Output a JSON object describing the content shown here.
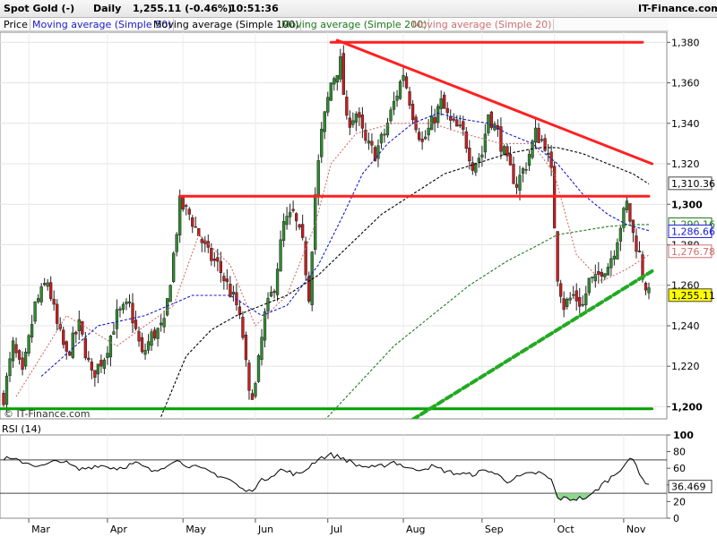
{
  "header": {
    "instrument": "Spot Gold (-)",
    "period": "Daily",
    "price_change": "1,255.11 (-0.46%)",
    "time": "10:51:36",
    "brand": "IT-Finance.com"
  },
  "legend": {
    "items": [
      {
        "label": "Price",
        "color": "#000000"
      },
      {
        "label": "Moving average (Simple 50)",
        "color": "#1a1acc"
      },
      {
        "label": "Moving average (Simple 100)",
        "color": "#000000"
      },
      {
        "label": "Moving average (Simple 200)",
        "color": "#1e7a1e"
      },
      {
        "label": "Moving average (Simple 20)",
        "color": "#d07070"
      }
    ]
  },
  "copyright": "© IT-Finance.com",
  "rsi_panel": {
    "label": "RSI (14)",
    "current_value": "36.469",
    "ticks": [
      "100",
      "80",
      "60",
      "40",
      "20",
      "0"
    ]
  },
  "badges": [
    {
      "text": "1,310.36",
      "value": 1310.36,
      "bg": "#ffffff",
      "fg": "#000000",
      "border": "#444444"
    },
    {
      "text": "1,290.16",
      "value": 1290.16,
      "bg": "#ffffff",
      "fg": "#1e7a1e",
      "border": "#1e7a1e"
    },
    {
      "text": "1,286.66",
      "value": 1286.66,
      "bg": "#ffffff",
      "fg": "#1a1acc",
      "border": "#1a1acc"
    },
    {
      "text": "1,276.78",
      "value": 1276.78,
      "bg": "#ffffff",
      "fg": "#d07070",
      "border": "#d07070"
    },
    {
      "text": "1,255.11",
      "value": 1255.11,
      "bg": "#ffff00",
      "fg": "#000000",
      "border": "#444444"
    }
  ],
  "chart_data": {
    "type": "candlestick",
    "ylim": [
      1194,
      1385
    ],
    "y_ticks": [
      1200,
      1220,
      1240,
      1260,
      1280,
      1300,
      1320,
      1340,
      1360,
      1380
    ],
    "y_tick_labels": [
      "1,200",
      "1,220",
      "1,240",
      "1,260",
      "1,280",
      "1,300",
      "1,320",
      "1,340",
      "1,360",
      "1,380"
    ],
    "months": [
      "Mar",
      "Apr",
      "May",
      "Jun",
      "Jul",
      "Aug",
      "Sep",
      "Oct",
      "Nov"
    ],
    "month_bar_index": [
      8,
      33,
      57,
      80,
      103,
      127,
      152,
      175,
      197
    ],
    "bar_count": 206,
    "close_anchors": [
      [
        0,
        1205
      ],
      [
        3,
        1230
      ],
      [
        6,
        1215
      ],
      [
        10,
        1250
      ],
      [
        14,
        1262
      ],
      [
        17,
        1240
      ],
      [
        20,
        1225
      ],
      [
        24,
        1240
      ],
      [
        28,
        1215
      ],
      [
        32,
        1225
      ],
      [
        36,
        1245
      ],
      [
        40,
        1250
      ],
      [
        44,
        1225
      ],
      [
        47,
        1235
      ],
      [
        51,
        1240
      ],
      [
        54,
        1275
      ],
      [
        56,
        1300
      ],
      [
        59,
        1295
      ],
      [
        62,
        1285
      ],
      [
        65,
        1275
      ],
      [
        68,
        1270
      ],
      [
        71,
        1260
      ],
      [
        74,
        1250
      ],
      [
        76,
        1235
      ],
      [
        78,
        1205
      ],
      [
        80,
        1210
      ],
      [
        83,
        1245
      ],
      [
        86,
        1260
      ],
      [
        89,
        1290
      ],
      [
        92,
        1295
      ],
      [
        95,
        1280
      ],
      [
        97,
        1255
      ],
      [
        99,
        1305
      ],
      [
        101,
        1335
      ],
      [
        104,
        1360
      ],
      [
        107,
        1370
      ],
      [
        109,
        1340
      ],
      [
        112,
        1345
      ],
      [
        115,
        1330
      ],
      [
        118,
        1325
      ],
      [
        121,
        1335
      ],
      [
        124,
        1350
      ],
      [
        127,
        1365
      ],
      [
        130,
        1345
      ],
      [
        133,
        1330
      ],
      [
        136,
        1340
      ],
      [
        139,
        1350
      ],
      [
        142,
        1340
      ],
      [
        146,
        1335
      ],
      [
        149,
        1320
      ],
      [
        152,
        1325
      ],
      [
        154,
        1345
      ],
      [
        157,
        1335
      ],
      [
        160,
        1320
      ],
      [
        163,
        1310
      ],
      [
        166,
        1320
      ],
      [
        169,
        1335
      ],
      [
        172,
        1330
      ],
      [
        174,
        1315
      ],
      [
        176,
        1265
      ],
      [
        178,
        1250
      ],
      [
        181,
        1255
      ],
      [
        184,
        1250
      ],
      [
        186,
        1262
      ],
      [
        188,
        1262
      ],
      [
        190,
        1268
      ],
      [
        192,
        1270
      ],
      [
        194,
        1278
      ],
      [
        196,
        1290
      ],
      [
        198,
        1300
      ],
      [
        200,
        1285
      ],
      [
        202,
        1275
      ],
      [
        203,
        1265
      ],
      [
        205,
        1255
      ]
    ],
    "moving_averages": [
      {
        "name": "Moving average (Simple 20)",
        "color": "#d07070",
        "dash": "2,2",
        "points": [
          [
            4,
            1205
          ],
          [
            20,
            1245
          ],
          [
            36,
            1230
          ],
          [
            54,
            1250
          ],
          [
            62,
            1285
          ],
          [
            72,
            1270
          ],
          [
            80,
            1240
          ],
          [
            90,
            1255
          ],
          [
            99,
            1290
          ],
          [
            104,
            1320
          ],
          [
            112,
            1335
          ],
          [
            124,
            1340
          ],
          [
            136,
            1340
          ],
          [
            146,
            1335
          ],
          [
            158,
            1330
          ],
          [
            168,
            1330
          ],
          [
            175,
            1315
          ],
          [
            182,
            1275
          ],
          [
            190,
            1262
          ],
          [
            198,
            1268
          ],
          [
            205,
            1275
          ]
        ]
      },
      {
        "name": "Moving average (Simple 50)",
        "color": "#1a1acc",
        "dash": "3,2",
        "points": [
          [
            12,
            1215
          ],
          [
            30,
            1240
          ],
          [
            45,
            1245
          ],
          [
            60,
            1255
          ],
          [
            72,
            1255
          ],
          [
            82,
            1245
          ],
          [
            90,
            1250
          ],
          [
            100,
            1270
          ],
          [
            108,
            1295
          ],
          [
            114,
            1315
          ],
          [
            122,
            1330
          ],
          [
            130,
            1340
          ],
          [
            138,
            1345
          ],
          [
            146,
            1342
          ],
          [
            154,
            1340
          ],
          [
            160,
            1335
          ],
          [
            168,
            1330
          ],
          [
            176,
            1320
          ],
          [
            184,
            1305
          ],
          [
            192,
            1295
          ],
          [
            198,
            1290
          ],
          [
            205,
            1287
          ]
        ]
      },
      {
        "name": "Moving average (Simple 100)",
        "color": "#000000",
        "dash": "3,2",
        "points": [
          [
            50,
            1195
          ],
          [
            58,
            1225
          ],
          [
            66,
            1238
          ],
          [
            74,
            1245
          ],
          [
            82,
            1250
          ],
          [
            90,
            1255
          ],
          [
            100,
            1265
          ],
          [
            110,
            1280
          ],
          [
            120,
            1295
          ],
          [
            130,
            1305
          ],
          [
            140,
            1315
          ],
          [
            150,
            1320
          ],
          [
            160,
            1325
          ],
          [
            170,
            1328
          ],
          [
            176,
            1328
          ],
          [
            184,
            1325
          ],
          [
            192,
            1320
          ],
          [
            200,
            1315
          ],
          [
            205,
            1310
          ]
        ]
      },
      {
        "name": "Moving average (Simple 200)",
        "color": "#1e7a1e",
        "dash": "3,2",
        "points": [
          [
            100,
            1190
          ],
          [
            112,
            1210
          ],
          [
            124,
            1230
          ],
          [
            136,
            1245
          ],
          [
            148,
            1260
          ],
          [
            160,
            1272
          ],
          [
            170,
            1280
          ],
          [
            176,
            1285
          ],
          [
            184,
            1287
          ],
          [
            192,
            1289
          ],
          [
            200,
            1290
          ],
          [
            205,
            1290
          ]
        ]
      }
    ],
    "trendlines": [
      {
        "color": "#ff2020",
        "width": 3,
        "dash": "",
        "points": [
          [
            104,
            1380
          ],
          [
            203,
            1380
          ]
        ]
      },
      {
        "color": "#ff2020",
        "width": 3,
        "dash": "",
        "points": [
          [
            56,
            1304
          ],
          [
            205,
            1304
          ]
        ]
      },
      {
        "color": "#ff2020",
        "width": 3,
        "dash": "",
        "points": [
          [
            106,
            1381
          ],
          [
            206,
            1320
          ]
        ]
      },
      {
        "color": "#00a000",
        "width": 3,
        "dash": "",
        "points": [
          [
            -2,
            1199
          ],
          [
            206,
            1199
          ]
        ]
      },
      {
        "color": "#22aa22",
        "width": 4,
        "dash": "7,4",
        "points": [
          [
            122,
            1186
          ],
          [
            206,
            1267
          ]
        ]
      }
    ],
    "rsi": {
      "ylim": [
        0,
        100
      ],
      "levels": [
        70,
        30
      ],
      "anchors": [
        [
          0,
          72
        ],
        [
          6,
          68
        ],
        [
          12,
          62
        ],
        [
          18,
          70
        ],
        [
          24,
          58
        ],
        [
          30,
          64
        ],
        [
          36,
          60
        ],
        [
          42,
          66
        ],
        [
          48,
          55
        ],
        [
          54,
          70
        ],
        [
          60,
          62
        ],
        [
          66,
          55
        ],
        [
          72,
          46
        ],
        [
          76,
          34
        ],
        [
          78,
          32
        ],
        [
          82,
          45
        ],
        [
          88,
          58
        ],
        [
          94,
          52
        ],
        [
          100,
          72
        ],
        [
          104,
          76
        ],
        [
          108,
          72
        ],
        [
          112,
          64
        ],
        [
          118,
          60
        ],
        [
          124,
          68
        ],
        [
          130,
          58
        ],
        [
          136,
          62
        ],
        [
          142,
          55
        ],
        [
          148,
          52
        ],
        [
          154,
          58
        ],
        [
          160,
          45
        ],
        [
          166,
          52
        ],
        [
          170,
          55
        ],
        [
          174,
          46
        ],
        [
          176,
          24
        ],
        [
          180,
          23
        ],
        [
          186,
          25
        ],
        [
          190,
          40
        ],
        [
          194,
          52
        ],
        [
          198,
          68
        ],
        [
          200,
          70
        ],
        [
          203,
          48
        ],
        [
          205,
          38
        ]
      ],
      "oversold_fill": {
        "from": 175,
        "to": 188,
        "color": "#8fd68f"
      }
    }
  }
}
